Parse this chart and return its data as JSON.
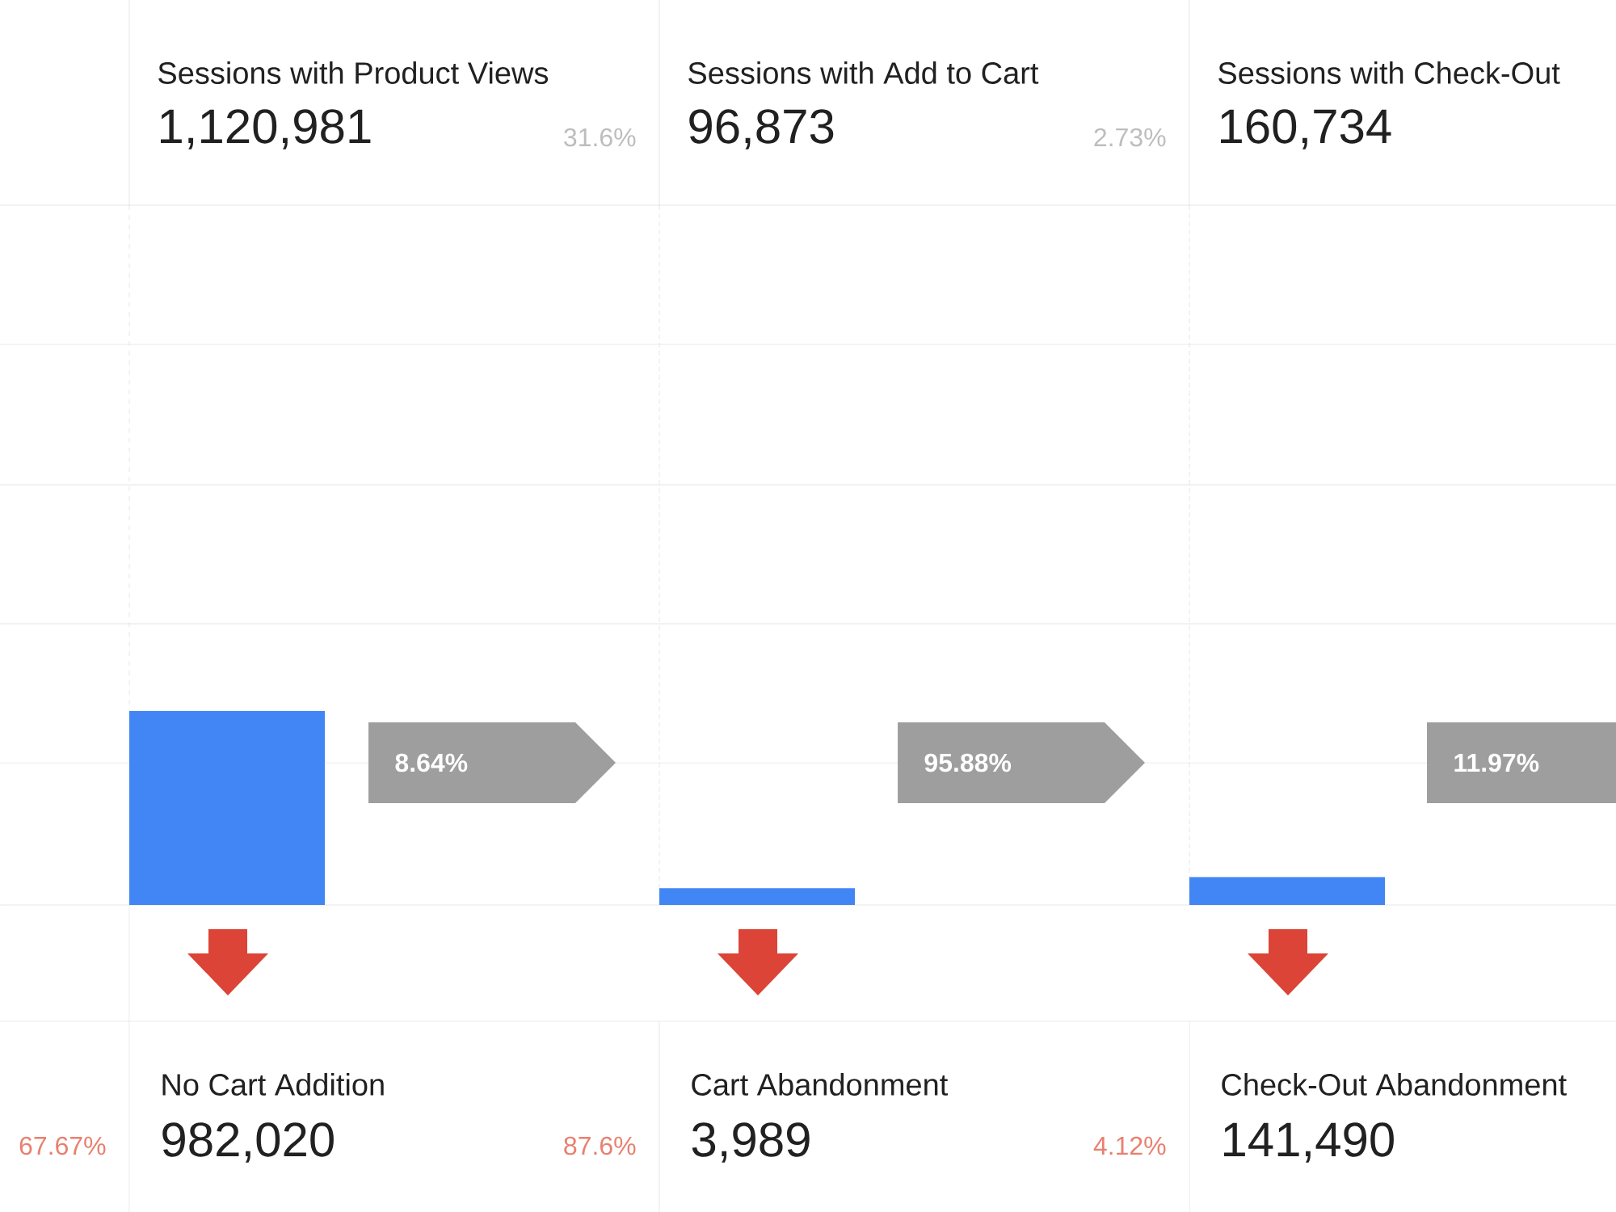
{
  "chart_data": {
    "type": "other",
    "color": "#4285f4",
    "categories": [
      "Sessions with Product Views",
      "Sessions with Add to Cart",
      "Sessions with Check-Out"
    ],
    "values": [
      1120981,
      96873,
      160734
    ],
    "value_labels": [
      "1,120,981",
      "96,873",
      "160,734"
    ],
    "annotations": [
      "31.6%",
      "2.73%",
      "8.64%",
      "95.88%",
      "11.97%",
      "67.67%",
      "No Cart Addition",
      "982,020",
      "87.6%",
      "Cart Abandonment",
      "3,989",
      "4.12%",
      "Check-Out Abandonment",
      "141,490"
    ]
  }
}
